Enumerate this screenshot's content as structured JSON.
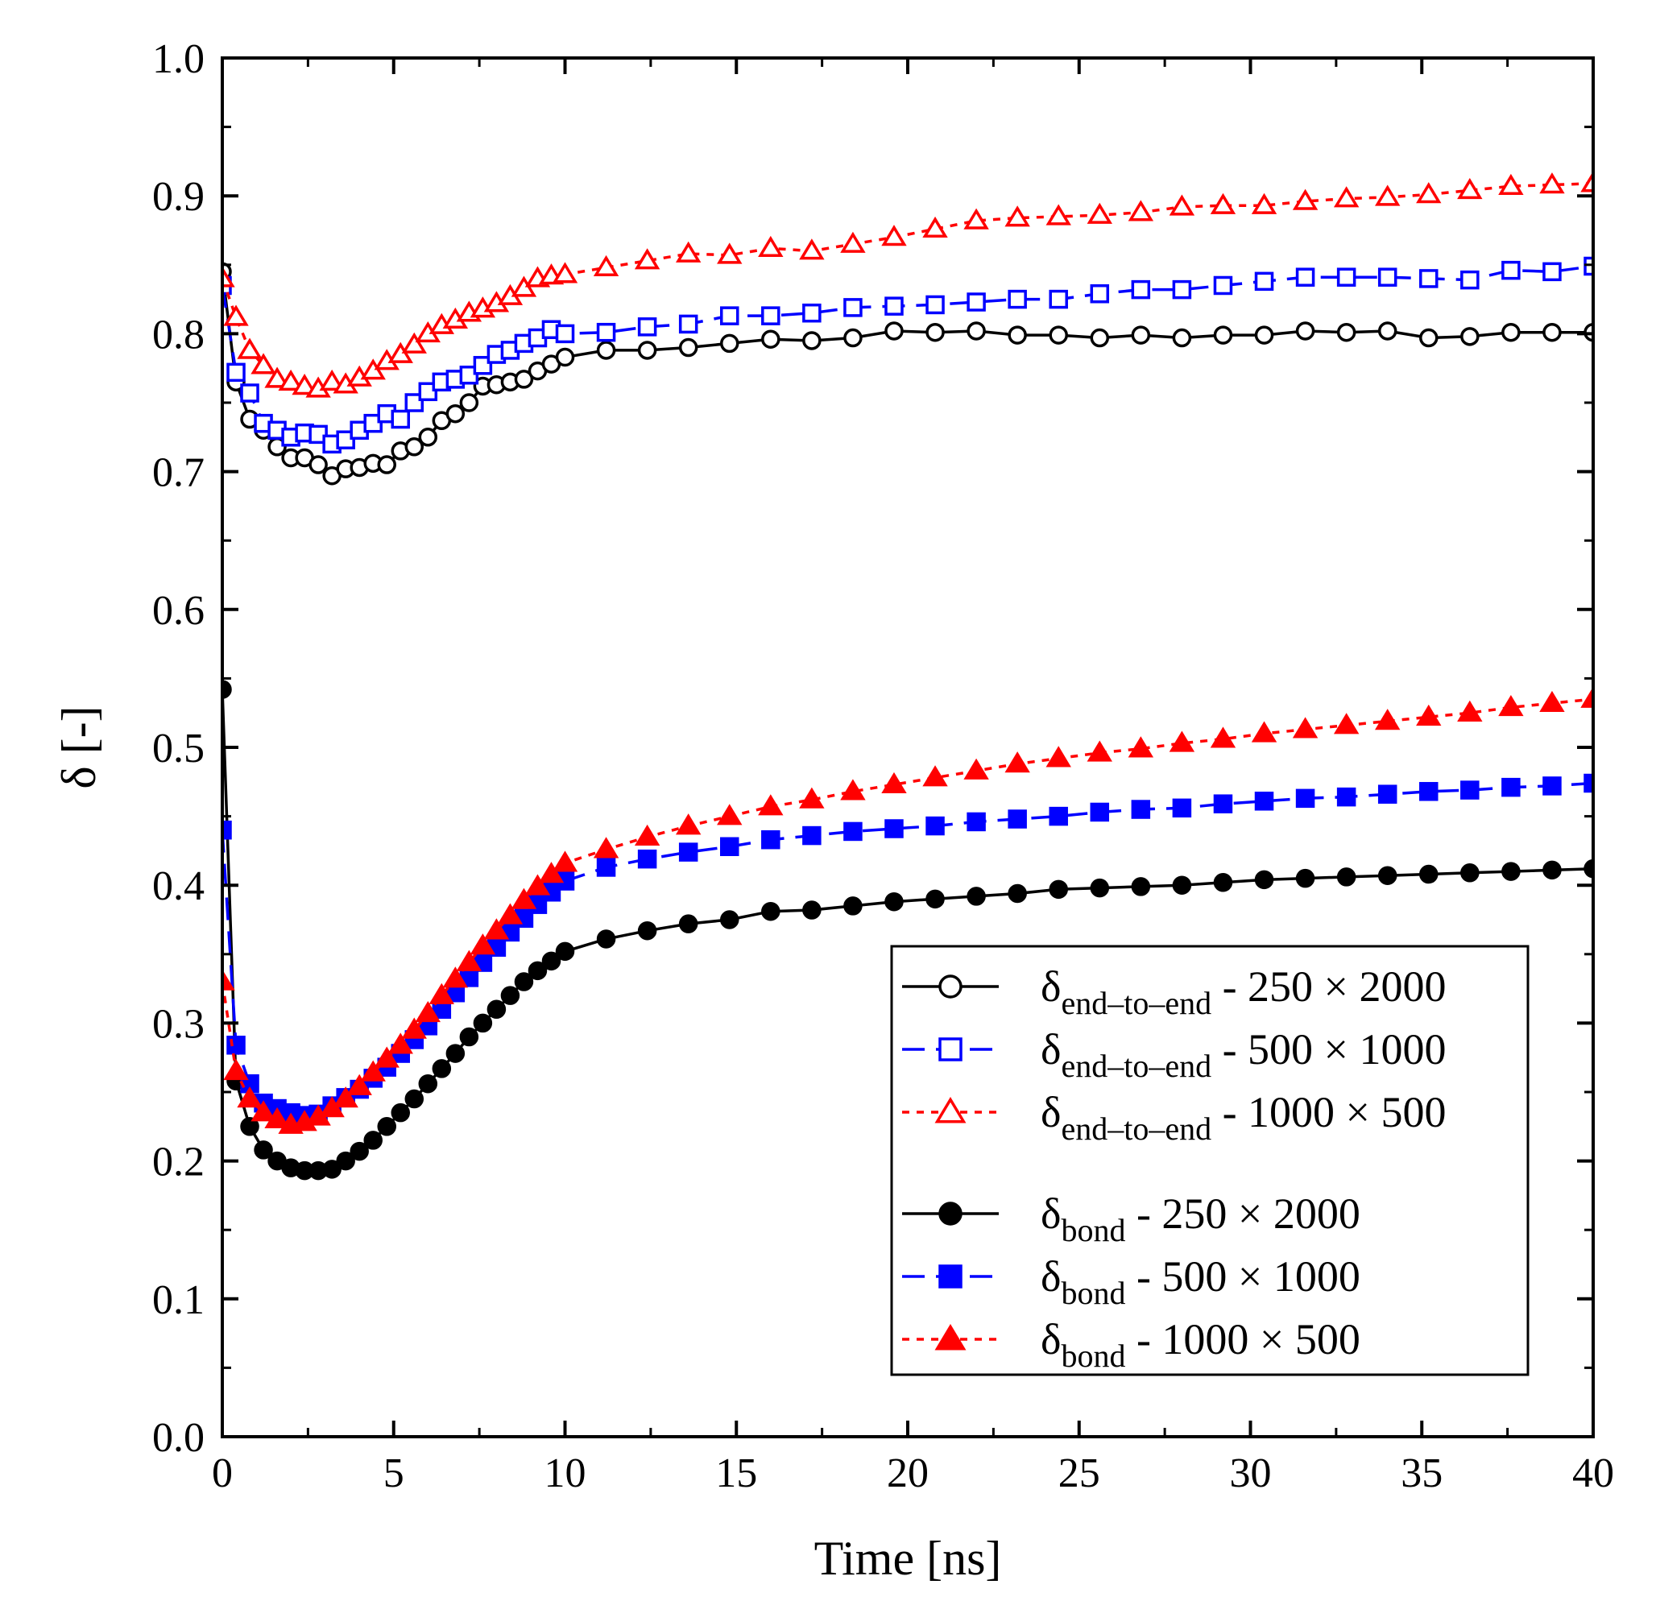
{
  "chart_data": {
    "type": "line",
    "title": "",
    "xlabel": "Time [ns]",
    "ylabel": "δ [-]",
    "xlim": [
      0,
      40
    ],
    "ylim": [
      0.0,
      1.0
    ],
    "xticks": [
      0,
      5,
      10,
      15,
      20,
      25,
      30,
      35,
      40
    ],
    "yticks": [
      0.0,
      0.1,
      0.2,
      0.3,
      0.4,
      0.5,
      0.6,
      0.7,
      0.8,
      0.9,
      1.0
    ],
    "xtick_labels": [
      "0",
      "5",
      "10",
      "15",
      "20",
      "25",
      "30",
      "35",
      "40"
    ],
    "ytick_labels": [
      "0.0",
      "0.1",
      "0.2",
      "0.3",
      "0.4",
      "0.5",
      "0.6",
      "0.7",
      "0.8",
      "0.9",
      "1.0"
    ],
    "legend_position": "lower-right",
    "grid": false,
    "series": [
      {
        "name": "δend–to–end - 250 × 2000",
        "symbol": "δ",
        "subscript": "end–to–end",
        "suffix": " - 250 × 2000",
        "color": "#000000",
        "marker": "circle",
        "filled": false,
        "dash": "solid",
        "x": [
          0,
          0.4,
          0.8,
          1.2,
          1.6,
          2.0,
          2.4,
          2.8,
          3.2,
          3.6,
          4.0,
          4.4,
          4.8,
          5.2,
          5.6,
          6.0,
          6.4,
          6.8,
          7.2,
          7.6,
          8.0,
          8.4,
          8.8,
          9.2,
          9.6,
          10.0,
          11.2,
          12.4,
          13.6,
          14.8,
          16.0,
          17.2,
          18.4,
          19.6,
          20.8,
          22.0,
          23.2,
          24.4,
          25.6,
          26.8,
          28.0,
          29.2,
          30.4,
          31.6,
          32.8,
          34.0,
          35.2,
          36.4,
          37.6,
          38.8,
          40.0
        ],
        "y": [
          0.845,
          0.765,
          0.738,
          0.73,
          0.718,
          0.71,
          0.71,
          0.705,
          0.697,
          0.702,
          0.703,
          0.706,
          0.705,
          0.715,
          0.718,
          0.725,
          0.737,
          0.742,
          0.75,
          0.762,
          0.763,
          0.765,
          0.767,
          0.773,
          0.778,
          0.783,
          0.788,
          0.788,
          0.79,
          0.793,
          0.796,
          0.795,
          0.797,
          0.802,
          0.801,
          0.802,
          0.799,
          0.799,
          0.797,
          0.799,
          0.797,
          0.799,
          0.799,
          0.802,
          0.801,
          0.802,
          0.797,
          0.798,
          0.801,
          0.801,
          0.801
        ]
      },
      {
        "name": "δend–to–end - 500 × 1000",
        "symbol": "δ",
        "subscript": "end–to–end",
        "suffix": " - 500 × 1000",
        "color": "#0000ff",
        "marker": "square",
        "filled": false,
        "dash": "dash",
        "x": [
          0,
          0.4,
          0.8,
          1.2,
          1.6,
          2.0,
          2.4,
          2.8,
          3.2,
          3.6,
          4.0,
          4.4,
          4.8,
          5.2,
          5.6,
          6.0,
          6.4,
          6.8,
          7.2,
          7.6,
          8.0,
          8.4,
          8.8,
          9.2,
          9.6,
          10.0,
          11.2,
          12.4,
          13.6,
          14.8,
          16.0,
          17.2,
          18.4,
          19.6,
          20.8,
          22.0,
          23.2,
          24.4,
          25.6,
          26.8,
          28.0,
          29.2,
          30.4,
          31.6,
          32.8,
          34.0,
          35.2,
          36.4,
          37.6,
          38.8,
          40.0
        ],
        "y": [
          0.835,
          0.772,
          0.757,
          0.735,
          0.73,
          0.725,
          0.728,
          0.727,
          0.72,
          0.723,
          0.73,
          0.735,
          0.742,
          0.738,
          0.75,
          0.758,
          0.765,
          0.767,
          0.77,
          0.777,
          0.785,
          0.788,
          0.793,
          0.797,
          0.803,
          0.8,
          0.801,
          0.805,
          0.807,
          0.813,
          0.813,
          0.815,
          0.819,
          0.82,
          0.821,
          0.823,
          0.825,
          0.825,
          0.829,
          0.832,
          0.832,
          0.835,
          0.838,
          0.841,
          0.841,
          0.841,
          0.84,
          0.839,
          0.846,
          0.845,
          0.849
        ]
      },
      {
        "name": "δend–to–end - 1000 × 500",
        "symbol": "δ",
        "subscript": "end–to–end",
        "suffix": " - 1000 × 500",
        "color": "#ff0000",
        "marker": "triangle",
        "filled": false,
        "dash": "dot",
        "x": [
          0,
          0.4,
          0.8,
          1.2,
          1.6,
          2.0,
          2.4,
          2.8,
          3.2,
          3.6,
          4.0,
          4.4,
          4.8,
          5.2,
          5.6,
          6.0,
          6.4,
          6.8,
          7.2,
          7.6,
          8.0,
          8.4,
          8.8,
          9.2,
          9.6,
          10.0,
          11.2,
          12.4,
          13.6,
          14.8,
          16.0,
          17.2,
          18.4,
          19.6,
          20.8,
          22.0,
          23.2,
          24.4,
          25.6,
          26.8,
          28.0,
          29.2,
          30.4,
          31.6,
          32.8,
          34.0,
          35.2,
          36.4,
          37.6,
          38.8,
          40.0
        ],
        "y": [
          0.84,
          0.812,
          0.788,
          0.777,
          0.767,
          0.765,
          0.762,
          0.76,
          0.765,
          0.763,
          0.768,
          0.773,
          0.78,
          0.785,
          0.792,
          0.8,
          0.806,
          0.81,
          0.815,
          0.818,
          0.822,
          0.827,
          0.833,
          0.84,
          0.842,
          0.843,
          0.848,
          0.853,
          0.858,
          0.857,
          0.862,
          0.86,
          0.865,
          0.87,
          0.876,
          0.882,
          0.884,
          0.885,
          0.886,
          0.888,
          0.892,
          0.893,
          0.893,
          0.896,
          0.898,
          0.899,
          0.901,
          0.904,
          0.907,
          0.908,
          0.909
        ]
      },
      {
        "name": "δbond - 250 × 2000",
        "symbol": "δ",
        "subscript": "bond",
        "suffix": " - 250 × 2000",
        "color": "#000000",
        "marker": "circle",
        "filled": true,
        "dash": "solid",
        "x": [
          0,
          0.4,
          0.8,
          1.2,
          1.6,
          2.0,
          2.4,
          2.8,
          3.2,
          3.6,
          4.0,
          4.4,
          4.8,
          5.2,
          5.6,
          6.0,
          6.4,
          6.8,
          7.2,
          7.6,
          8.0,
          8.4,
          8.8,
          9.2,
          9.6,
          10.0,
          11.2,
          12.4,
          13.6,
          14.8,
          16.0,
          17.2,
          18.4,
          19.6,
          20.8,
          22.0,
          23.2,
          24.4,
          25.6,
          26.8,
          28.0,
          29.2,
          30.4,
          31.6,
          32.8,
          34.0,
          35.2,
          36.4,
          37.6,
          38.8,
          40.0
        ],
        "y": [
          0.542,
          0.258,
          0.225,
          0.208,
          0.2,
          0.195,
          0.193,
          0.193,
          0.194,
          0.2,
          0.207,
          0.215,
          0.225,
          0.235,
          0.245,
          0.256,
          0.267,
          0.278,
          0.29,
          0.3,
          0.31,
          0.32,
          0.33,
          0.338,
          0.345,
          0.352,
          0.361,
          0.367,
          0.372,
          0.375,
          0.381,
          0.382,
          0.385,
          0.388,
          0.39,
          0.392,
          0.394,
          0.397,
          0.398,
          0.399,
          0.4,
          0.402,
          0.404,
          0.405,
          0.406,
          0.407,
          0.408,
          0.409,
          0.41,
          0.411,
          0.412
        ]
      },
      {
        "name": "δbond - 500 × 1000",
        "symbol": "δ",
        "subscript": "bond",
        "suffix": " - 500 × 1000",
        "color": "#0000ff",
        "marker": "square",
        "filled": true,
        "dash": "dash",
        "x": [
          0,
          0.4,
          0.8,
          1.2,
          1.6,
          2.0,
          2.4,
          2.8,
          3.2,
          3.6,
          4.0,
          4.4,
          4.8,
          5.2,
          5.6,
          6.0,
          6.4,
          6.8,
          7.2,
          7.6,
          8.0,
          8.4,
          8.8,
          9.2,
          9.6,
          10.0,
          11.2,
          12.4,
          13.6,
          14.8,
          16.0,
          17.2,
          18.4,
          19.6,
          20.8,
          22.0,
          23.2,
          24.4,
          25.6,
          26.8,
          28.0,
          29.2,
          30.4,
          31.6,
          32.8,
          34.0,
          35.2,
          36.4,
          37.6,
          38.8,
          40.0
        ],
        "y": [
          0.44,
          0.284,
          0.256,
          0.242,
          0.238,
          0.235,
          0.233,
          0.234,
          0.24,
          0.246,
          0.252,
          0.26,
          0.268,
          0.278,
          0.288,
          0.298,
          0.31,
          0.322,
          0.333,
          0.344,
          0.355,
          0.366,
          0.376,
          0.386,
          0.395,
          0.403,
          0.413,
          0.419,
          0.424,
          0.428,
          0.433,
          0.436,
          0.439,
          0.441,
          0.443,
          0.446,
          0.448,
          0.45,
          0.453,
          0.455,
          0.456,
          0.459,
          0.461,
          0.463,
          0.464,
          0.466,
          0.468,
          0.469,
          0.471,
          0.472,
          0.474
        ]
      },
      {
        "name": "δbond - 1000 × 500",
        "symbol": "δ",
        "subscript": "bond",
        "suffix": " - 1000 × 500",
        "color": "#ff0000",
        "marker": "triangle",
        "filled": true,
        "dash": "dot",
        "x": [
          0,
          0.4,
          0.8,
          1.2,
          1.6,
          2.0,
          2.4,
          2.8,
          3.2,
          3.6,
          4.0,
          4.4,
          4.8,
          5.2,
          5.6,
          6.0,
          6.4,
          6.8,
          7.2,
          7.6,
          8.0,
          8.4,
          8.8,
          9.2,
          9.6,
          10.0,
          11.2,
          12.4,
          13.6,
          14.8,
          16.0,
          17.2,
          18.4,
          19.6,
          20.8,
          22.0,
          23.2,
          24.4,
          25.6,
          26.8,
          28.0,
          29.2,
          30.4,
          31.6,
          32.8,
          34.0,
          35.2,
          36.4,
          37.6,
          38.8,
          40.0
        ],
        "y": [
          0.33,
          0.265,
          0.245,
          0.235,
          0.23,
          0.226,
          0.228,
          0.232,
          0.238,
          0.245,
          0.254,
          0.264,
          0.274,
          0.284,
          0.295,
          0.307,
          0.32,
          0.332,
          0.344,
          0.356,
          0.367,
          0.378,
          0.389,
          0.399,
          0.408,
          0.416,
          0.426,
          0.435,
          0.443,
          0.45,
          0.457,
          0.462,
          0.468,
          0.473,
          0.478,
          0.483,
          0.488,
          0.492,
          0.496,
          0.499,
          0.503,
          0.506,
          0.51,
          0.513,
          0.516,
          0.519,
          0.522,
          0.525,
          0.529,
          0.532,
          0.535
        ]
      }
    ]
  }
}
